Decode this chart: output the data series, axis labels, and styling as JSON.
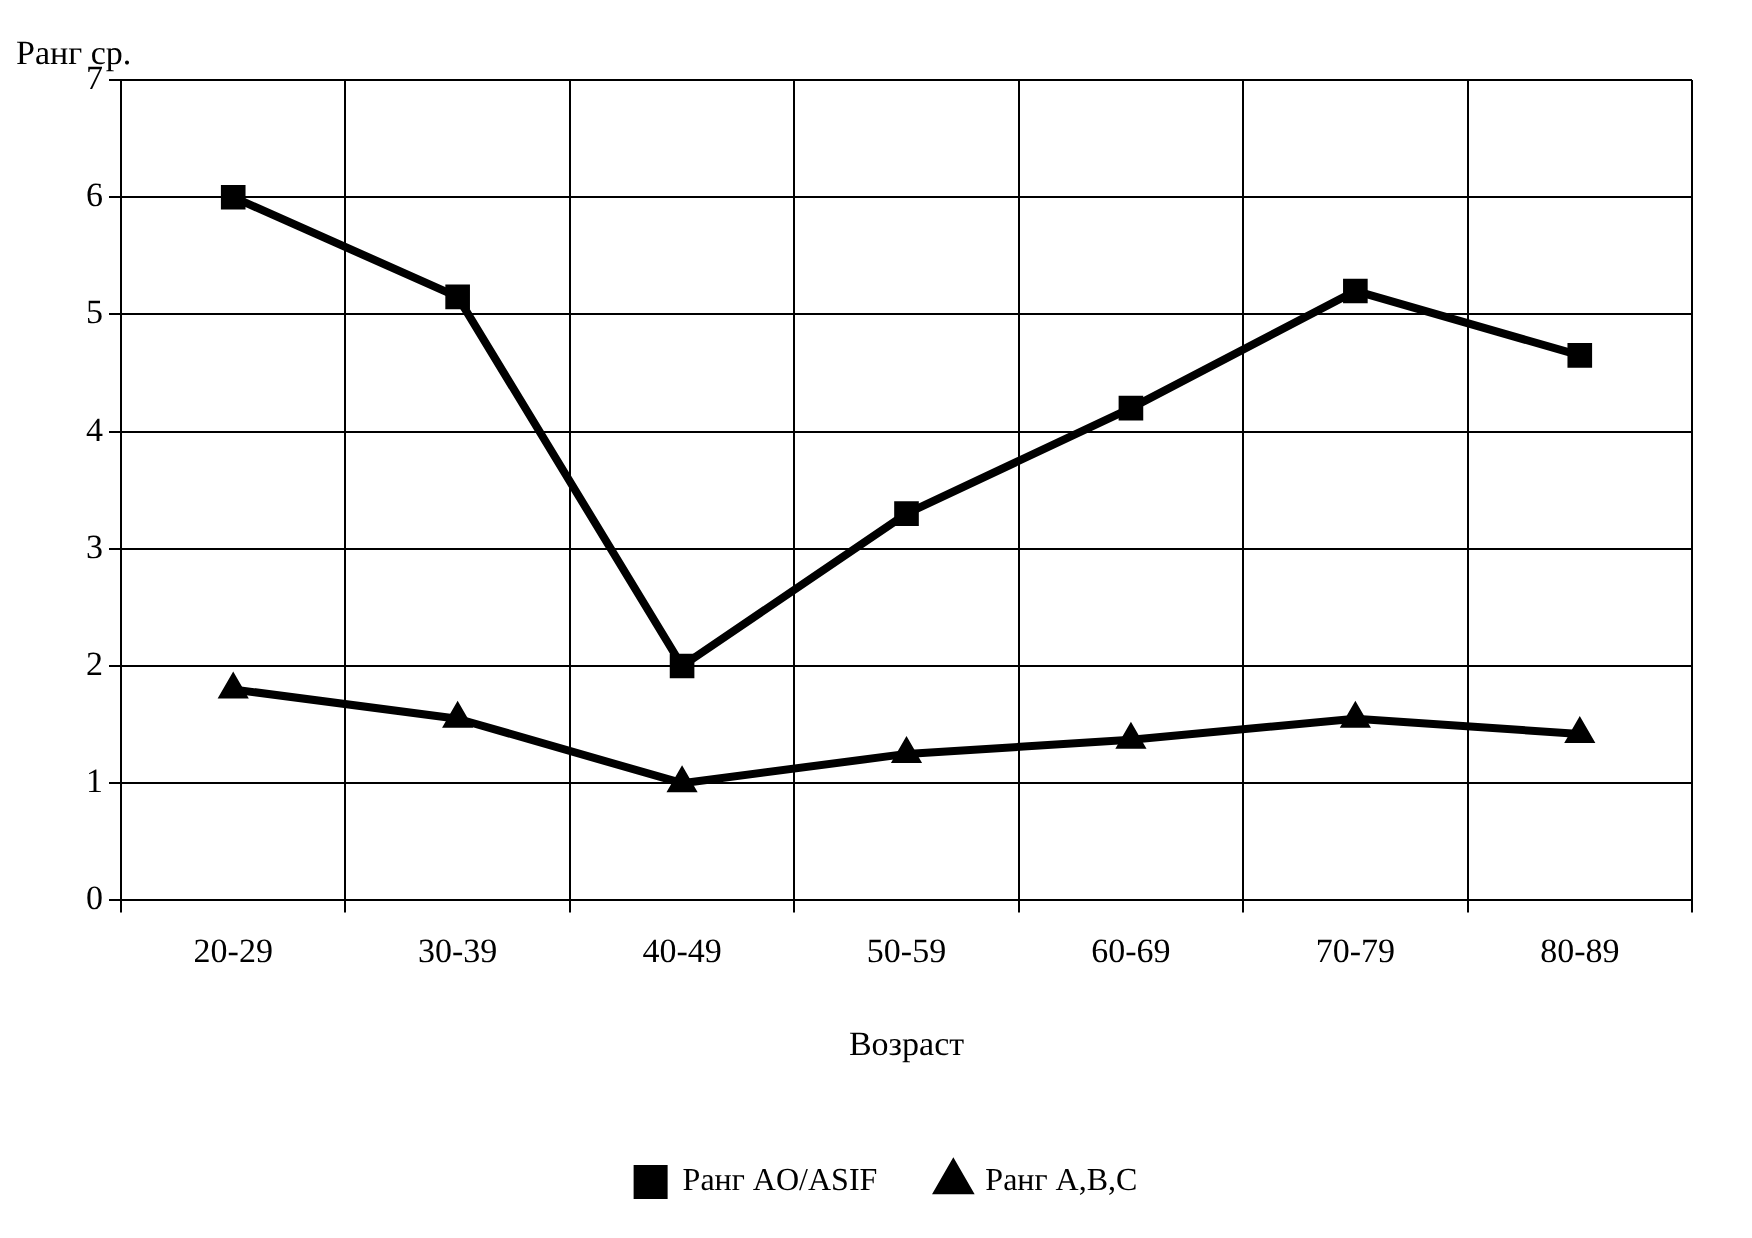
{
  "chart_data": {
    "type": "line",
    "xlabel": "Возраст",
    "ylabel": "Ранг ср.",
    "categories": [
      "20-29",
      "30-39",
      "40-49",
      "50-59",
      "60-69",
      "70-79",
      "80-89"
    ],
    "series": [
      {
        "name": "Ранг AO/ASIF",
        "color": "#000000",
        "marker": "square",
        "values": [
          6.0,
          5.15,
          2.0,
          3.3,
          4.2,
          5.2,
          4.65
        ]
      },
      {
        "name": "Ранг A,B,C",
        "color": "#000000",
        "marker": "triangle",
        "values": [
          1.8,
          1.55,
          1.0,
          1.25,
          1.37,
          1.55,
          1.42
        ]
      }
    ],
    "ylim": [
      0,
      7
    ],
    "yticks": [
      0,
      1,
      2,
      3,
      4,
      5,
      6,
      7
    ],
    "grid": true,
    "legend": "bottom",
    "line_style": "solid"
  }
}
